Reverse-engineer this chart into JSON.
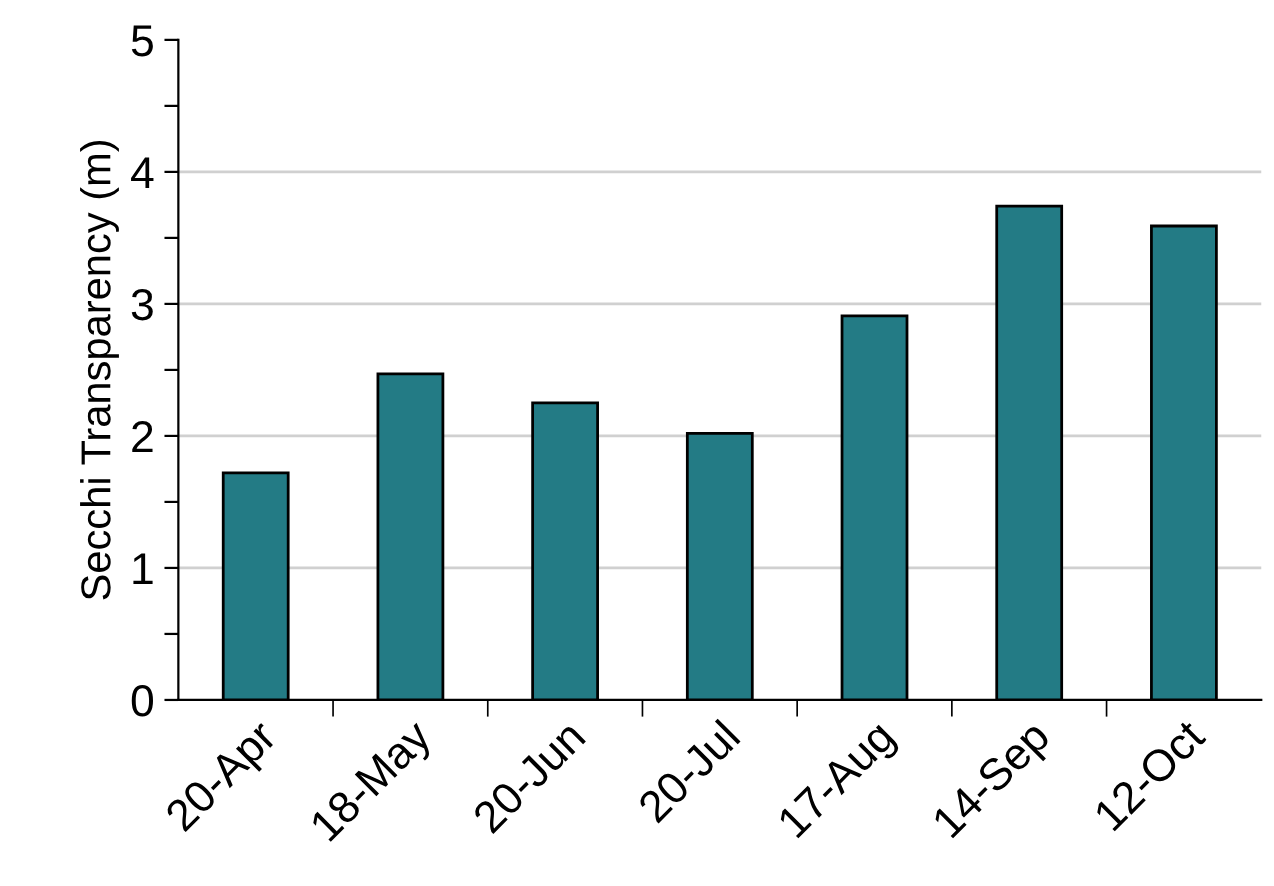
{
  "chart_data": {
    "type": "bar",
    "ylabel": "Secchi Transparency (m)",
    "categories": [
      "20-Apr",
      "18-May",
      "20-Jun",
      "20-Jul",
      "17-Aug",
      "14-Sep",
      "12-Oct"
    ],
    "values": [
      1.72,
      2.47,
      2.25,
      2.02,
      2.91,
      3.74,
      3.59
    ],
    "color": "#237b85",
    "ylim": [
      0,
      5
    ],
    "yticks": [
      0,
      {
        "value": 0.5,
        "label": null
      },
      1,
      {
        "value": 1.5,
        "label": null
      },
      2,
      {
        "value": 2.5,
        "label": null
      },
      3,
      {
        "value": 3.5,
        "label": null
      },
      4,
      {
        "value": 4.5,
        "label": null
      },
      5
    ],
    "grid": "y"
  }
}
